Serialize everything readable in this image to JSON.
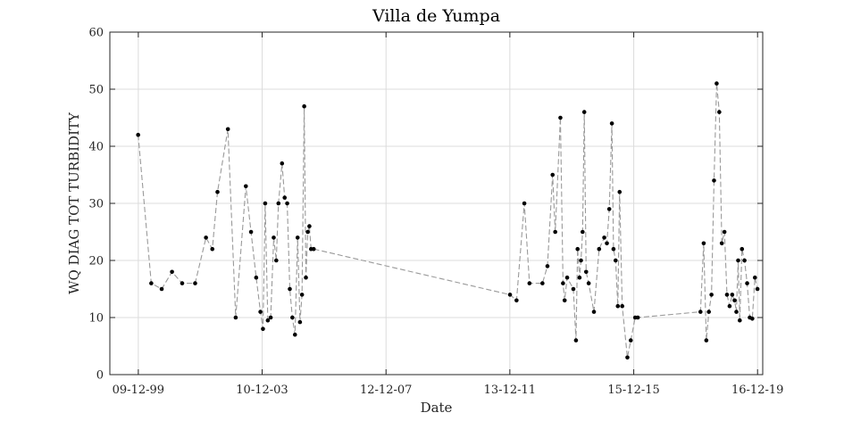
{
  "chart_data": {
    "type": "line",
    "title": "Villa de Yumpa",
    "xlabel": "Date",
    "ylabel": "WQ DIAG TOT TURBIDITY",
    "x_tick_labels": [
      "09-12-99",
      "10-12-03",
      "12-12-07",
      "13-12-11",
      "15-12-15",
      "16-12-19"
    ],
    "x_ticks": [
      "1999-12-09",
      "2003-12-10",
      "2007-12-12",
      "2011-12-13",
      "2015-12-15",
      "2019-12-16"
    ],
    "xlim": [
      "1999-01-07",
      "2020-02-15"
    ],
    "ylim": [
      0,
      60
    ],
    "y_ticks": [
      0,
      10,
      20,
      30,
      40,
      50,
      60
    ],
    "grid": true,
    "series": [
      {
        "x": [
          "1999-12-07",
          "2000-05-10",
          "2000-09-10",
          "2001-01-10",
          "2001-05-10",
          "2001-10-10",
          "2002-02-15",
          "2002-05-01",
          "2002-07-01",
          "2002-11-01",
          "2003-02-01",
          "2003-06-01",
          "2003-08-01",
          "2003-10-01",
          "2003-11-20",
          "2003-12-20",
          "2004-01-15",
          "2004-02-15",
          "2004-03-20",
          "2004-04-25",
          "2004-05-25",
          "2004-06-20",
          "2004-08-01",
          "2004-09-01",
          "2004-10-01",
          "2004-11-01",
          "2004-12-01",
          "2005-01-01",
          "2005-02-01",
          "2005-03-01",
          "2005-03-25",
          "2005-04-20",
          "2005-05-10",
          "2005-06-01",
          "2005-06-20",
          "2005-07-10",
          "2005-08-10",
          "2011-12-15",
          "2012-03-01",
          "2012-06-01",
          "2012-08-01",
          "2013-01-01",
          "2013-03-01",
          "2013-05-01",
          "2013-06-01",
          "2013-08-01",
          "2013-09-01",
          "2013-09-20",
          "2013-10-20",
          "2014-01-01",
          "2014-02-01",
          "2014-02-20",
          "2014-03-15",
          "2014-04-01",
          "2014-04-20",
          "2014-05-10",
          "2014-06-01",
          "2014-07-01",
          "2014-09-01",
          "2014-11-01",
          "2015-01-01",
          "2015-02-01",
          "2015-03-01",
          "2015-04-01",
          "2015-04-20",
          "2015-05-15",
          "2015-06-10",
          "2015-07-01",
          "2015-08-01",
          "2015-10-01",
          "2015-11-10",
          "2016-01-01",
          "2016-02-01",
          "2018-02-10",
          "2018-03-20",
          "2018-04-20",
          "2018-05-20",
          "2018-06-20",
          "2018-07-20",
          "2018-08-20",
          "2018-09-20",
          "2018-10-20",
          "2018-11-20",
          "2018-12-20",
          "2019-01-20",
          "2019-02-20",
          "2019-03-20",
          "2019-04-10",
          "2019-05-01",
          "2019-05-20",
          "2019-06-15",
          "2019-07-15",
          "2019-08-15",
          "2019-09-15",
          "2019-10-15",
          "2019-11-15",
          "2019-12-15"
        ],
        "y": [
          42,
          16,
          15,
          18,
          16,
          16,
          24,
          22,
          32,
          43,
          10,
          33,
          25,
          17,
          11,
          8,
          30,
          9.5,
          10,
          24,
          20,
          30,
          37,
          31,
          30,
          15,
          10,
          7,
          24,
          9.2,
          14,
          47,
          17,
          25,
          26,
          22,
          22,
          14,
          13,
          30,
          16,
          16,
          19,
          35,
          25,
          45,
          16,
          13,
          17,
          15,
          6,
          22,
          17,
          20,
          25,
          46,
          18,
          16,
          11,
          22,
          24,
          23,
          29,
          44,
          22,
          20,
          12,
          32,
          12,
          3,
          6,
          10,
          10,
          11,
          23,
          6,
          11,
          14,
          34,
          51,
          46,
          23,
          25,
          14,
          12,
          14,
          13,
          11,
          20,
          9.5,
          22,
          20,
          16,
          10,
          9.8,
          17,
          15
        ]
      }
    ]
  }
}
